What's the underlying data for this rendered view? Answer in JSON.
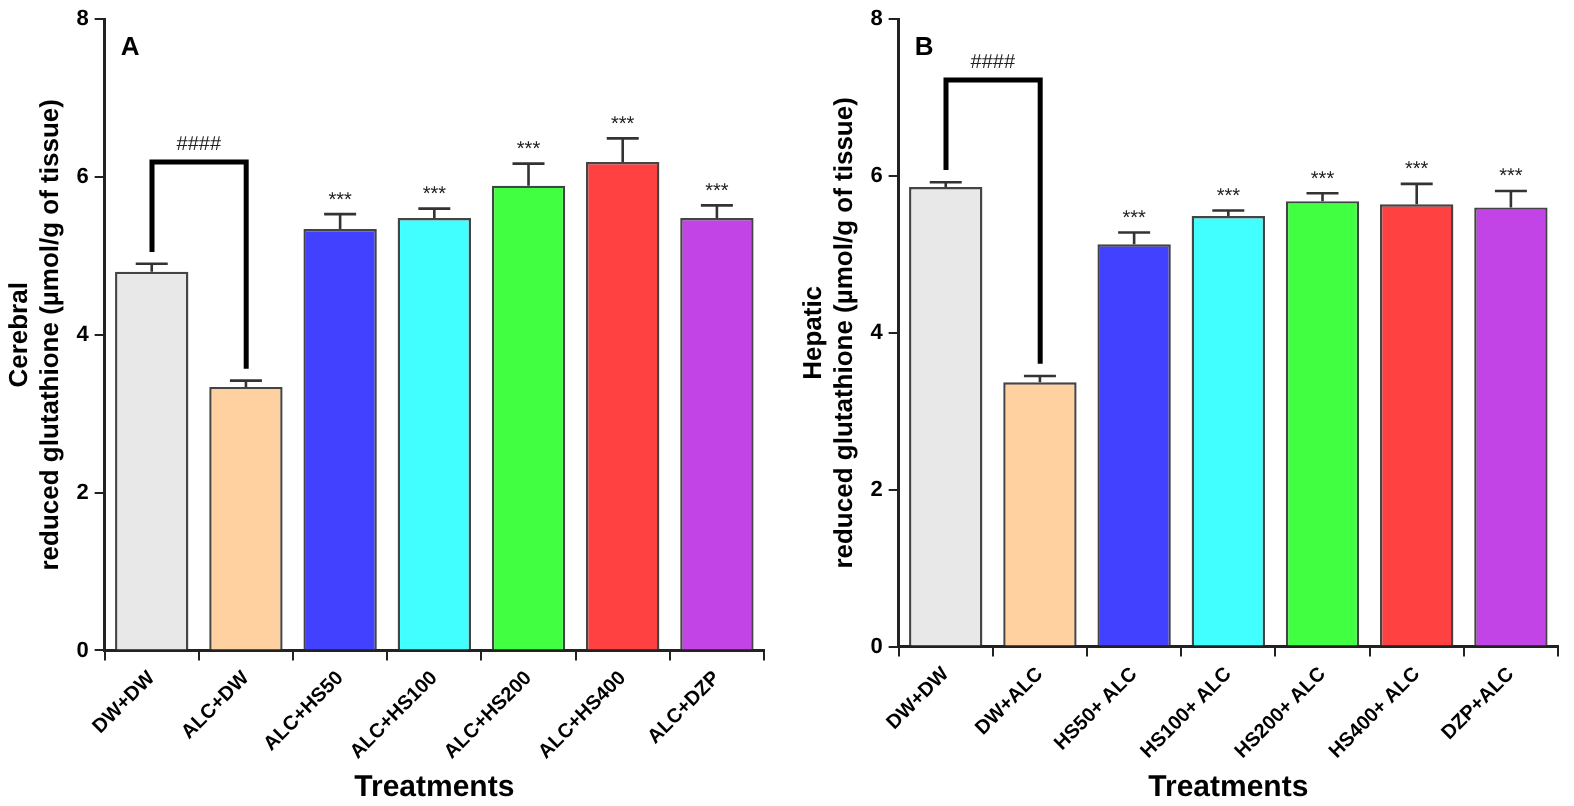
{
  "chart_data": [
    {
      "type": "bar",
      "xlabel": "Treatments",
      "ylabel": "Cerebral\nreduced glutathione (µmol/g of tissue)",
      "categories": [
        "DW+DW",
        "ALC+DW",
        "ALC+HS50",
        "ALC+HS100",
        "ALC+HS200",
        "ALC+HS400",
        "ALC+DZP"
      ],
      "values": [
        4.8,
        3.34,
        5.34,
        5.48,
        5.89,
        6.19,
        5.48
      ],
      "errors": [
        0.1,
        0.08,
        0.19,
        0.12,
        0.28,
        0.3,
        0.16
      ],
      "colors": [
        "#e8e8e8",
        "#ffd1a1",
        "#4141ff",
        "#41ffff",
        "#41ff41",
        "#ff4141",
        "#c243e6"
      ],
      "ylim": [
        0,
        8
      ],
      "yticks": [
        0,
        2,
        4,
        6,
        8
      ],
      "grid": false,
      "annotations": [
        "A",
        "####",
        {
          "text": "***",
          "x": "ALC+HS50",
          "y": 5.53
        },
        {
          "text": "***",
          "x": "ALC+HS100",
          "y": 5.6
        },
        {
          "text": "***",
          "x": "ALC+HS200",
          "y": 6.17
        },
        {
          "text": "***",
          "x": "ALC+HS400",
          "y": 6.49
        },
        {
          "text": "***",
          "x": "ALC+DZP",
          "y": 5.64
        }
      ]
    },
    {
      "type": "bar",
      "xlabel": "Treatments",
      "ylabel": "Hepatic\nreduced glutathione (µmol/g of tissue)",
      "categories": [
        "DW+DW",
        "DW+ALC",
        "HS50+ ALC",
        "HS100+ ALC",
        "HS200+ ALC",
        "HS400+ ALC",
        "DZP+ALC"
      ],
      "values": [
        5.86,
        3.37,
        5.13,
        5.49,
        5.68,
        5.64,
        5.6
      ],
      "errors": [
        0.06,
        0.08,
        0.15,
        0.07,
        0.1,
        0.26,
        0.21
      ],
      "colors": [
        "#e8e8e8",
        "#ffd1a1",
        "#4141ff",
        "#41ffff",
        "#41ff41",
        "#ff4141",
        "#c243e6"
      ],
      "ylim": [
        0,
        8
      ],
      "yticks": [
        0,
        2,
        4,
        6,
        8
      ],
      "grid": false,
      "annotations": [
        "B",
        "####",
        {
          "text": "***",
          "x": "HS50+ ALC",
          "y": 5.28
        },
        {
          "text": "***",
          "x": "HS100+ ALC",
          "y": 5.56
        },
        {
          "text": "***",
          "x": "HS200+ ALC",
          "y": 5.78
        },
        {
          "text": "***",
          "x": "HS400+ ALC",
          "y": 5.9
        },
        {
          "text": "***",
          "x": "DZP+ALC",
          "y": 5.81
        }
      ]
    }
  ]
}
